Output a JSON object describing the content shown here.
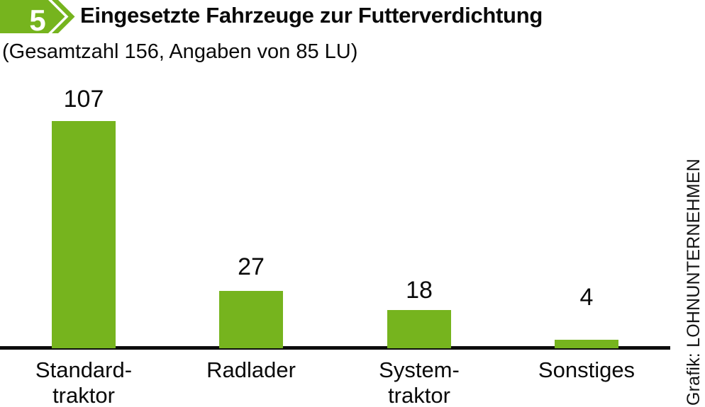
{
  "header": {
    "badge_number": "5",
    "title": "Eingesetzte Fahrzeuge zur Futterverdichtung",
    "subtitle": "(Gesamtzahl 156, Angaben von 85 LU)"
  },
  "credit": "Grafik: LOHNUNTERNEHMEN",
  "colors": {
    "accent_green": "#76b41e",
    "text": "#0a0a0a",
    "axis": "#0d0d0d",
    "badge_text": "#ffffff"
  },
  "chart_data": {
    "type": "bar",
    "title": "Eingesetzte Fahrzeuge zur Futterverdichtung",
    "subtitle": "(Gesamtzahl 156, Angaben von 85 LU)",
    "categories": [
      "Standardtraktor",
      "Radlader",
      "Systemtraktor",
      "Sonstiges"
    ],
    "category_label_lines": [
      [
        "Standard-",
        "traktor"
      ],
      [
        "Radlader"
      ],
      [
        "System-",
        "traktor"
      ],
      [
        "Sonstiges"
      ]
    ],
    "values": [
      107,
      27,
      18,
      4
    ],
    "total": 156,
    "respondents_lu": 85,
    "bar_color": "#76b41e",
    "value_labels_shown": true,
    "grid": false,
    "legend": "none",
    "yaxis_shown": false,
    "ylim": [
      0,
      110
    ]
  }
}
